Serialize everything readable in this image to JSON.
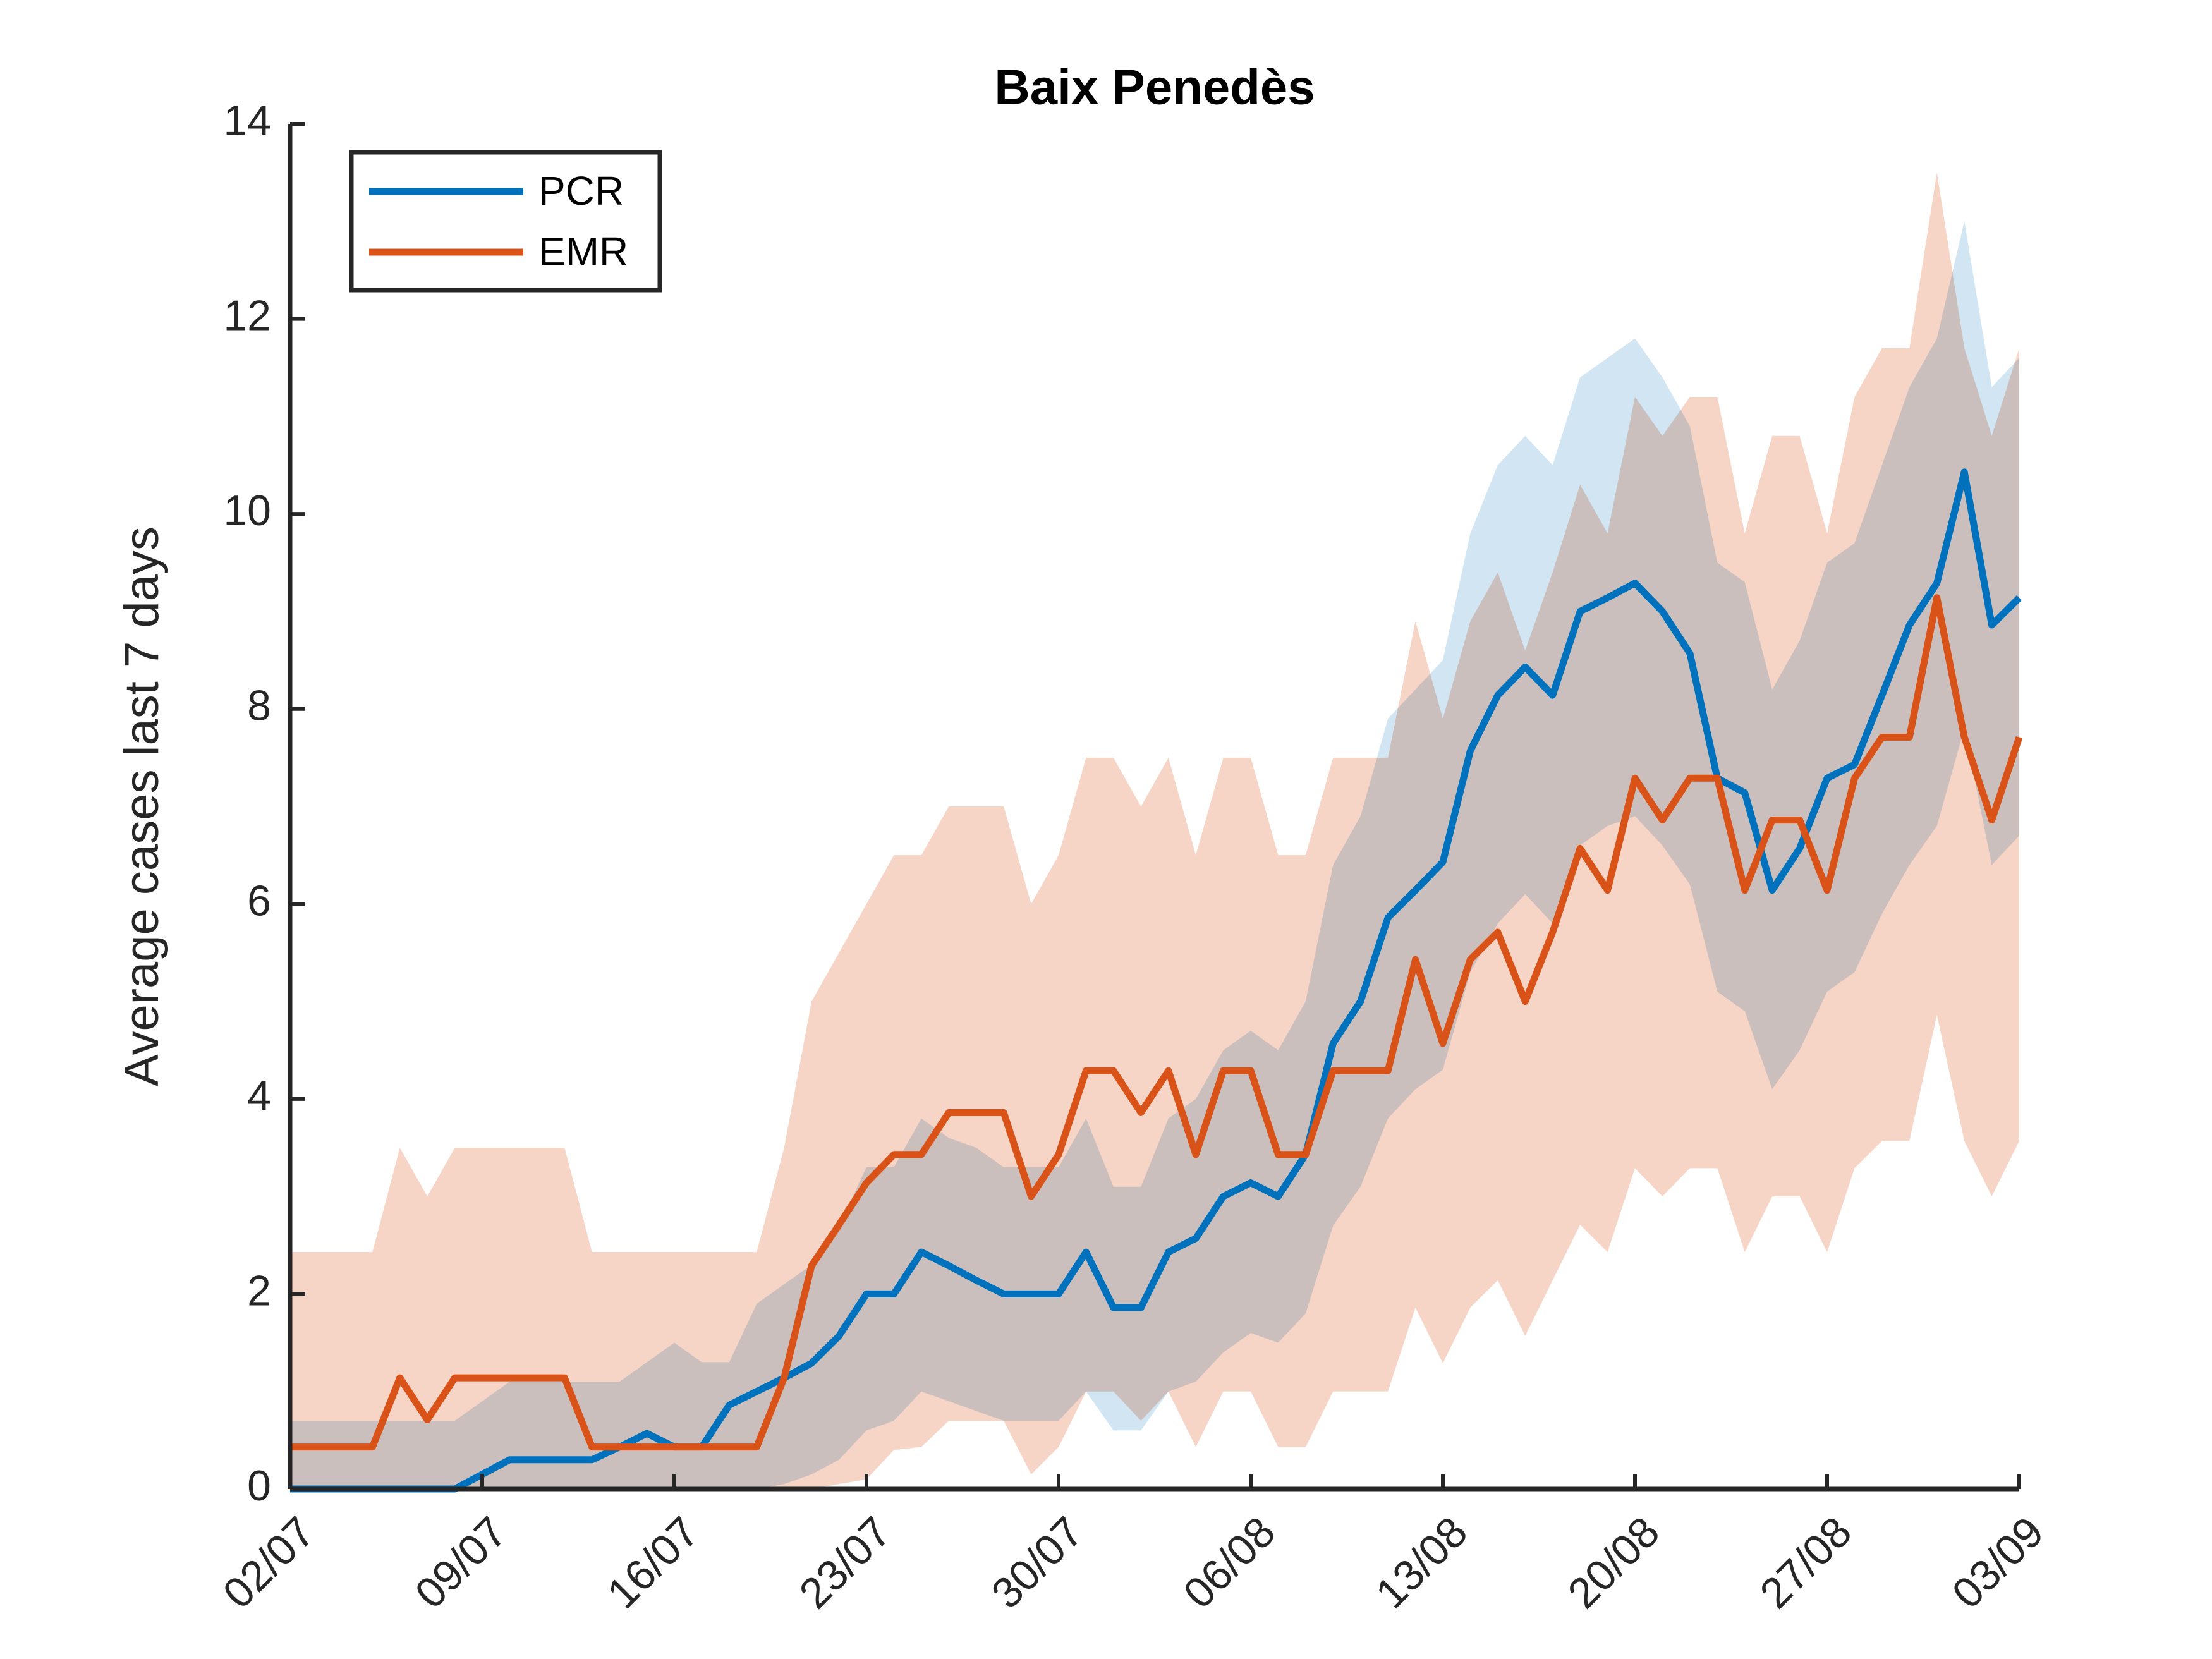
{
  "chart_data": {
    "type": "line",
    "title": "Baix Penedès",
    "ylabel": "Average cases last 7 days",
    "x": [
      0,
      1,
      2,
      3,
      4,
      5,
      6,
      7,
      8,
      9,
      10,
      11,
      12,
      13,
      14,
      15,
      16,
      17,
      18,
      19,
      20,
      21,
      22,
      23,
      24,
      25,
      26,
      27,
      28,
      29,
      30,
      31,
      32,
      33,
      34,
      35,
      36,
      37,
      38,
      39,
      40,
      41,
      42,
      43,
      44,
      45,
      46,
      47,
      48,
      49,
      50,
      51,
      52,
      53,
      54,
      55,
      56,
      57,
      58,
      59,
      60,
      61,
      62,
      63
    ],
    "xlim": [
      0,
      63
    ],
    "xticks": [
      {
        "value": 0,
        "label": "02/07"
      },
      {
        "value": 7,
        "label": "09/07"
      },
      {
        "value": 14,
        "label": "16/07"
      },
      {
        "value": 21,
        "label": "23/07"
      },
      {
        "value": 28,
        "label": "30/07"
      },
      {
        "value": 35,
        "label": "06/08"
      },
      {
        "value": 42,
        "label": "13/08"
      },
      {
        "value": 49,
        "label": "20/08"
      },
      {
        "value": 56,
        "label": "27/08"
      },
      {
        "value": 63,
        "label": "03/09"
      }
    ],
    "ylim": [
      0,
      14
    ],
    "yticks": [
      0,
      2,
      4,
      6,
      8,
      10,
      12,
      14
    ],
    "legend": "northwest",
    "series": [
      {
        "name": "PCR",
        "color": "#0072bd",
        "band_color": "#c2dcef",
        "values": [
          0,
          0,
          0,
          0,
          0,
          0,
          0,
          0.15,
          0.3,
          0.3,
          0.3,
          0.3,
          0.43,
          0.57,
          0.43,
          0.43,
          0.86,
          1.0,
          1.14,
          1.29,
          1.57,
          2.0,
          2.0,
          2.43,
          2.29,
          2.14,
          2.0,
          2.0,
          2.0,
          2.43,
          1.86,
          1.86,
          2.43,
          2.57,
          3.0,
          3.14,
          3.0,
          3.43,
          4.57,
          5.0,
          5.86,
          6.14,
          6.43,
          7.57,
          8.14,
          8.43,
          8.14,
          9.0,
          9.14,
          9.29,
          9.0,
          8.57,
          7.29,
          7.14,
          6.14,
          6.57,
          7.29,
          7.43,
          8.14,
          8.86,
          9.29,
          10.43,
          8.86,
          9.14
        ],
        "lower": [
          0,
          0,
          0,
          0,
          0,
          0,
          0,
          0,
          0,
          0,
          0,
          0,
          0,
          0,
          0,
          0,
          0,
          0,
          0.05,
          0.15,
          0.3,
          0.6,
          0.7,
          1.0,
          0.9,
          0.8,
          0.7,
          0.7,
          0.7,
          1.0,
          0.6,
          0.6,
          1.0,
          1.1,
          1.4,
          1.6,
          1.5,
          1.8,
          2.7,
          3.1,
          3.8,
          4.1,
          4.3,
          5.3,
          5.8,
          6.1,
          5.8,
          6.6,
          6.8,
          6.9,
          6.6,
          6.2,
          5.1,
          4.9,
          4.1,
          4.5,
          5.1,
          5.3,
          5.9,
          6.4,
          6.8,
          7.8,
          6.4,
          6.7
        ],
        "upper": [
          0.7,
          0.7,
          0.7,
          0.7,
          0.7,
          0.7,
          0.7,
          0.9,
          1.1,
          1.1,
          1.1,
          1.1,
          1.1,
          1.3,
          1.5,
          1.3,
          1.3,
          1.9,
          2.1,
          2.3,
          2.7,
          3.3,
          3.3,
          3.8,
          3.6,
          3.5,
          3.3,
          3.3,
          3.3,
          3.8,
          3.1,
          3.1,
          3.8,
          4.0,
          4.5,
          4.7,
          4.5,
          5.0,
          6.4,
          6.9,
          7.9,
          8.2,
          8.5,
          9.8,
          10.5,
          10.8,
          10.5,
          11.4,
          11.6,
          11.8,
          11.4,
          10.9,
          9.5,
          9.3,
          8.2,
          8.7,
          9.5,
          9.7,
          10.5,
          11.3,
          11.8,
          13.0,
          11.3,
          11.6
        ]
      },
      {
        "name": "EMR",
        "color": "#d95319",
        "band_color": "#f4c7b3",
        "values": [
          0.43,
          0.43,
          0.43,
          0.43,
          1.14,
          0.71,
          1.14,
          1.14,
          1.14,
          1.14,
          1.14,
          0.43,
          0.43,
          0.43,
          0.43,
          0.43,
          0.43,
          0.43,
          1.14,
          2.29,
          2.71,
          3.14,
          3.43,
          3.43,
          3.86,
          3.86,
          3.86,
          3.0,
          3.43,
          4.29,
          4.29,
          3.86,
          4.29,
          3.43,
          4.29,
          4.29,
          3.43,
          3.43,
          4.29,
          4.29,
          4.29,
          5.43,
          4.57,
          5.43,
          5.71,
          5.0,
          5.71,
          6.57,
          6.14,
          7.29,
          6.86,
          7.29,
          7.29,
          6.14,
          6.86,
          6.86,
          6.14,
          7.29,
          7.71,
          7.71,
          9.14,
          7.71,
          6.86,
          7.71
        ],
        "lower": [
          0,
          0,
          0,
          0,
          0,
          0,
          0,
          0,
          0,
          0,
          0,
          0,
          0,
          0,
          0,
          0,
          0,
          0,
          0,
          0,
          0.05,
          0.1,
          0.4,
          0.43,
          0.7,
          0.7,
          0.7,
          0.15,
          0.43,
          1.0,
          1.0,
          0.7,
          1.0,
          0.43,
          1.0,
          1.0,
          0.43,
          0.43,
          1.0,
          1.0,
          1.0,
          1.86,
          1.29,
          1.86,
          2.14,
          1.57,
          2.14,
          2.71,
          2.43,
          3.29,
          3.0,
          3.29,
          3.29,
          2.43,
          3.0,
          3.0,
          2.43,
          3.29,
          3.57,
          3.57,
          4.86,
          3.57,
          3.0,
          3.57
        ],
        "upper": [
          2.43,
          2.43,
          2.43,
          2.43,
          3.5,
          3.0,
          3.5,
          3.5,
          3.5,
          3.5,
          3.5,
          2.43,
          2.43,
          2.43,
          2.43,
          2.43,
          2.43,
          2.43,
          3.5,
          5.0,
          5.5,
          6.0,
          6.5,
          6.5,
          7.0,
          7.0,
          7.0,
          6.0,
          6.5,
          7.5,
          7.5,
          7.0,
          7.5,
          6.5,
          7.5,
          7.5,
          6.5,
          6.5,
          7.5,
          7.5,
          7.5,
          8.9,
          7.9,
          8.9,
          9.4,
          8.6,
          9.4,
          10.3,
          9.8,
          11.2,
          10.8,
          11.2,
          11.2,
          9.8,
          10.8,
          10.8,
          9.8,
          11.2,
          11.7,
          11.7,
          13.5,
          11.7,
          10.8,
          11.7
        ]
      }
    ]
  }
}
